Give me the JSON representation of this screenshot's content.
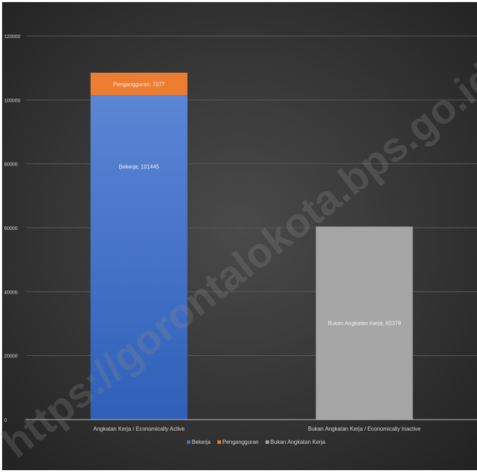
{
  "chart_data": {
    "type": "bar",
    "stacked": true,
    "categories": [
      "Angkatan Kerja / Economically Active",
      "Bukan Angkatan Kerja / Economically Inactive"
    ],
    "series": [
      {
        "name": "Bekerja",
        "values": [
          101445,
          0
        ],
        "data_labels": [
          "Bekerja; 101445",
          ""
        ]
      },
      {
        "name": "Pengangguran",
        "values": [
          7077,
          0
        ],
        "data_labels": [
          "Pengangguran; 7077",
          ""
        ]
      },
      {
        "name": "Bukan Angkatan Kerja",
        "values": [
          0,
          60378
        ],
        "data_labels": [
          "",
          "Bukan Angkatan Kerja; 60378"
        ]
      }
    ],
    "ylim": [
      0,
      120000
    ],
    "yticks": [
      "0",
      "20000",
      "40000",
      "60000",
      "80000",
      "100000",
      "120000"
    ],
    "grid": true,
    "legend_position": "bottom",
    "colors": {
      "Bekerja": "#4472c4",
      "Pengangguran": "#ed7d31",
      "Bukan Angkatan Kerja": "#a5a5a5",
      "background": "#2b2b2b",
      "text": "#d9d9d9"
    }
  },
  "watermark": "https://gorontalokota.bps.go.id"
}
